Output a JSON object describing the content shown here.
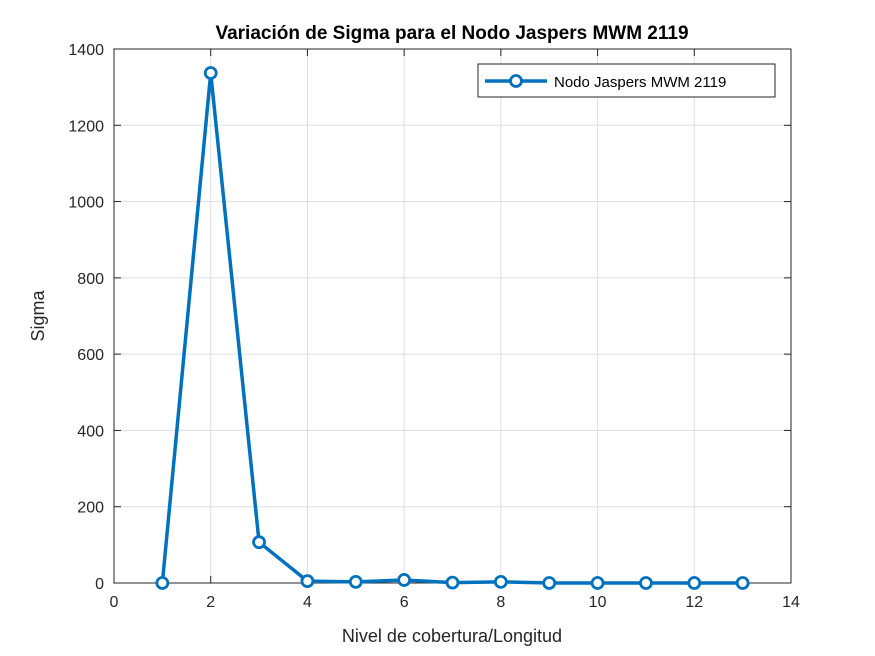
{
  "chart_data": {
    "type": "line",
    "title": "Variación de Sigma para el Nodo Jaspers MWM 2119",
    "xlabel": "Nivel de cobertura/Longitud",
    "ylabel": "Sigma",
    "xlim": [
      0,
      14
    ],
    "ylim": [
      0,
      1400
    ],
    "xticks": [
      "0",
      "2",
      "4",
      "6",
      "8",
      "10",
      "12",
      "14"
    ],
    "yticks": [
      "0",
      "200",
      "400",
      "600",
      "800",
      "1000",
      "1200",
      "1400"
    ],
    "grid": true,
    "legend_position": "top-right",
    "series": [
      {
        "name": "Nodo Jaspers MWM 2119",
        "color": "#0072BD",
        "marker": "circle",
        "x": [
          1,
          2,
          3,
          4,
          5,
          6,
          7,
          8,
          9,
          10,
          11,
          12,
          13
        ],
        "values": [
          0,
          1337,
          107,
          5,
          3,
          8,
          1,
          3,
          0,
          0,
          0,
          0,
          0
        ]
      }
    ]
  }
}
